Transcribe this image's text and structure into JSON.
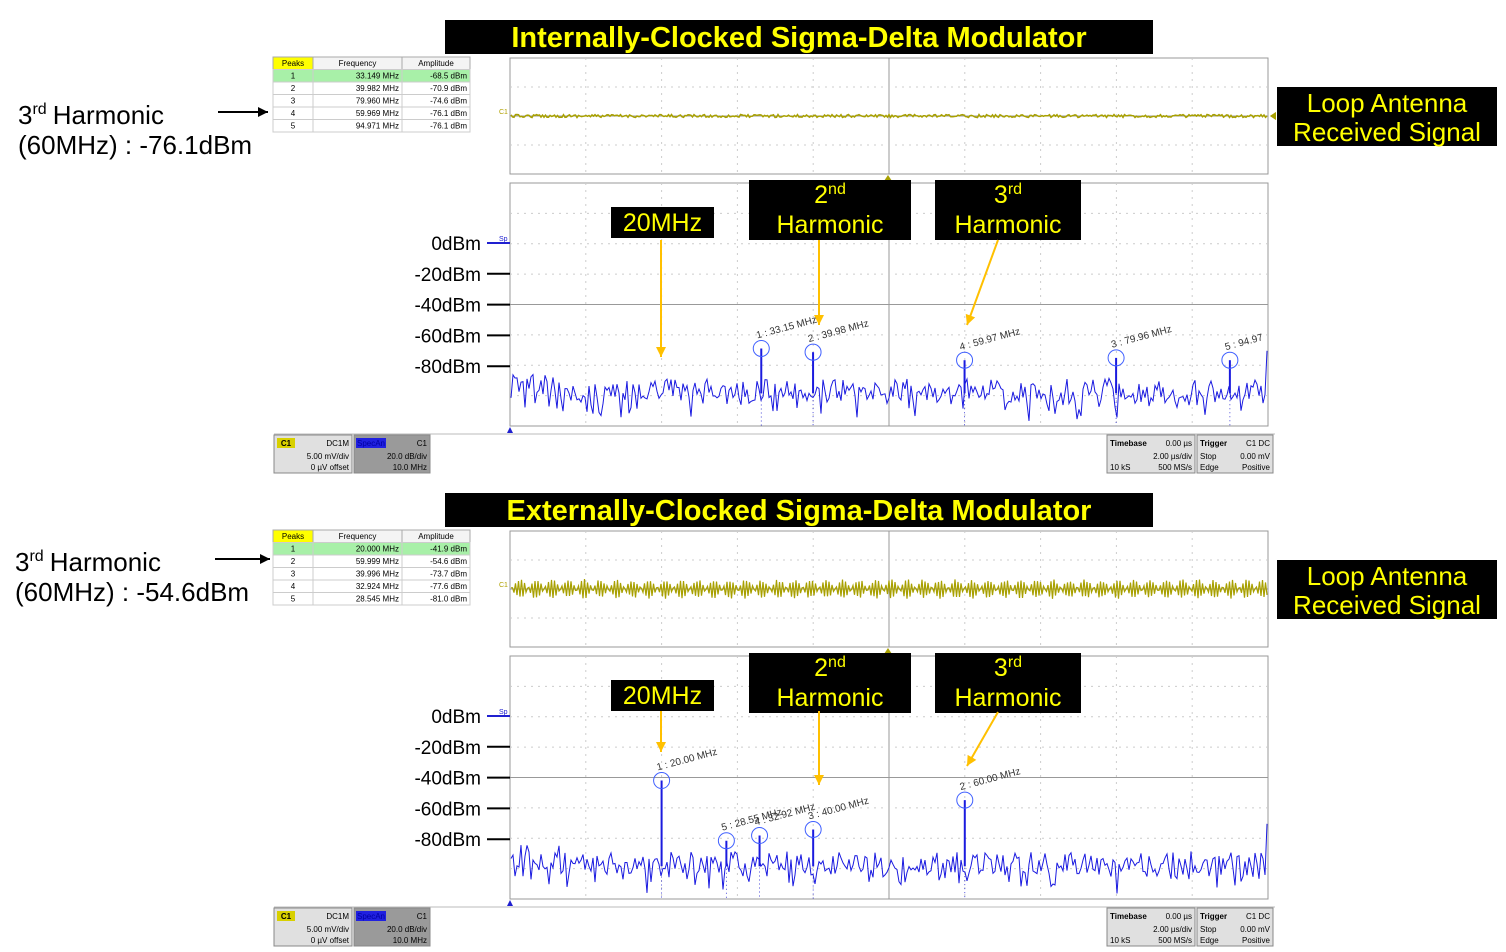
{
  "panels": [
    {
      "title": "Internally-Clocked Sigma-Delta Modulator",
      "harmonic_note": {
        "number": "3",
        "suffix": "rd",
        "label": "Harmonic",
        "detail": "(60MHz) : -76.1dBm"
      },
      "peaks_table": {
        "headers": [
          "Peaks",
          "Frequency",
          "Amplitude"
        ],
        "rows": [
          [
            "1",
            "33.149 MHz",
            "-68.5 dBm"
          ],
          [
            "2",
            "39.982 MHz",
            "-70.9 dBm"
          ],
          [
            "3",
            "79.960 MHz",
            "-74.6 dBm"
          ],
          [
            "4",
            "59.969 MHz",
            "-76.1 dBm"
          ],
          [
            "5",
            "94.971 MHz",
            "-76.1 dBm"
          ]
        ]
      },
      "signal_label": [
        "Loop Antenna",
        "Received Signal"
      ],
      "channel_tag": "C1",
      "spectrum_tag": "Sp",
      "y_labels": [
        "0dBm",
        "-20dBm",
        "-40dBm",
        "-60dBm",
        "-80dBm"
      ],
      "callouts": [
        {
          "text": "20MHz"
        },
        {
          "number": "2",
          "suffix": "nd",
          "text": "Harmonic"
        },
        {
          "number": "3",
          "suffix": "rd",
          "text": "Harmonic"
        }
      ],
      "markers": [
        "1 : 33.15 MHz",
        "2 : 39.98 MHz",
        "3 : 79.96 MHz",
        "4 : 59.97 MHz",
        "5 : 94.97"
      ],
      "status": {
        "channel_box": {
          "tag": "C1",
          "coupling": "DC1M",
          "scale": "5.00 mV/div",
          "offset": "0 µV offset"
        },
        "math_box": {
          "tag": "SpecAn",
          "source": "C1",
          "scale": "20.0 dB/div",
          "center": "10.0 MHz"
        },
        "timebase_box": {
          "title": "Timebase",
          "delay": "0.00 µs",
          "scale": "2.00 µs/div",
          "samples": "10 kS",
          "rate": "500 MS/s"
        },
        "trigger_box": {
          "title": "Trigger",
          "source": "C1 DC",
          "mode": "Stop",
          "level": "0.00 mV",
          "type": "Edge",
          "slope": "Positive"
        }
      }
    },
    {
      "title": "Externally-Clocked Sigma-Delta Modulator",
      "harmonic_note": {
        "number": "3",
        "suffix": "rd",
        "label": "Harmonic",
        "detail": "(60MHz) : -54.6dBm"
      },
      "peaks_table": {
        "headers": [
          "Peaks",
          "Frequency",
          "Amplitude"
        ],
        "rows": [
          [
            "1",
            "20.000 MHz",
            "-41.9 dBm"
          ],
          [
            "2",
            "59.999 MHz",
            "-54.6 dBm"
          ],
          [
            "3",
            "39.996 MHz",
            "-73.7 dBm"
          ],
          [
            "4",
            "32.924 MHz",
            "-77.6 dBm"
          ],
          [
            "5",
            "28.545 MHz",
            "-81.0 dBm"
          ]
        ]
      },
      "signal_label": [
        "Loop Antenna",
        "Received Signal"
      ],
      "channel_tag": "C1",
      "spectrum_tag": "Sp",
      "y_labels": [
        "0dBm",
        "-20dBm",
        "-40dBm",
        "-60dBm",
        "-80dBm"
      ],
      "callouts": [
        {
          "text": "20MHz"
        },
        {
          "number": "2",
          "suffix": "nd",
          "text": "Harmonic"
        },
        {
          "number": "3",
          "suffix": "rd",
          "text": "Harmonic"
        }
      ],
      "markers": [
        "1 : 20.00 MHz",
        "2 : 60.00 MHz",
        "3 : 40.00 MHz",
        "4 : 32.92 MHz",
        "5 : 28.55 MHz"
      ],
      "status": {
        "channel_box": {
          "tag": "C1",
          "coupling": "DC1M",
          "scale": "5.00 mV/div",
          "offset": "0 µV offset"
        },
        "math_box": {
          "tag": "SpecAn",
          "source": "C1",
          "scale": "20.0 dB/div",
          "center": "10.0 MHz"
        },
        "timebase_box": {
          "title": "Timebase",
          "delay": "0.00 µs",
          "scale": "2.00 µs/div",
          "samples": "10 kS",
          "rate": "500 MS/s"
        },
        "trigger_box": {
          "title": "Trigger",
          "source": "C1 DC",
          "mode": "Stop",
          "level": "0.00 mV",
          "type": "Edge",
          "slope": "Positive"
        }
      }
    }
  ]
}
